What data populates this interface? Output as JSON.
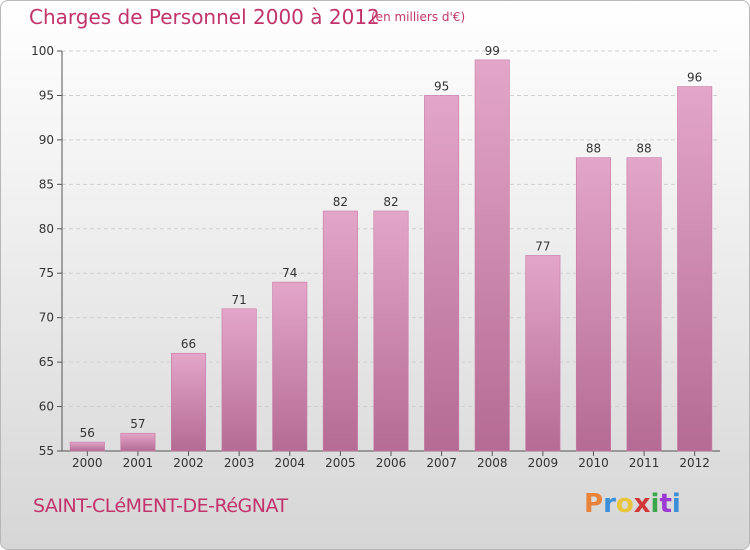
{
  "header": {
    "title": "Charges de Personnel 2000 à 2012",
    "unit": "(en milliers d'€)"
  },
  "footer": {
    "commune": "SAINT-CLéMENT-DE-RéGNAT",
    "logo_text": "Proxiti",
    "logo_colors": [
      "#e8833a",
      "#3a8fd8",
      "#e8c53a",
      "#d2383a",
      "#3aa84a",
      "#9a3ad2",
      "#3a8fd8"
    ]
  },
  "chart_data": {
    "type": "bar",
    "title": "Charges de Personnel 2000 à 2012",
    "subtitle": "(en milliers d'€)",
    "categories": [
      "2000",
      "2001",
      "2002",
      "2003",
      "2004",
      "2005",
      "2006",
      "2007",
      "2008",
      "2009",
      "2010",
      "2011",
      "2012"
    ],
    "values": [
      56,
      57,
      66,
      71,
      74,
      82,
      82,
      95,
      99,
      77,
      88,
      88,
      96
    ],
    "ylim": [
      55,
      100
    ],
    "yticks": [
      55,
      60,
      65,
      70,
      75,
      80,
      85,
      90,
      95,
      100
    ],
    "grid": true,
    "bar_color": "#d98cb5",
    "text_color": "#c2336d"
  }
}
